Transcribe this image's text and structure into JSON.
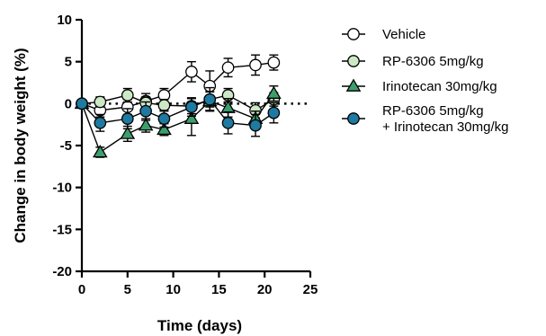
{
  "chart_data": {
    "type": "line",
    "title": "",
    "xlabel": "Time (days)",
    "ylabel": "Change in body weight (%)",
    "xlim": [
      0,
      25
    ],
    "ylim": [
      -20,
      10
    ],
    "xticks": [
      0,
      5,
      10,
      15,
      20,
      25
    ],
    "yticks": [
      10,
      5,
      0,
      -5,
      -10,
      -15,
      -20
    ],
    "reference_line_y": 0,
    "grid": false,
    "legend_position": "right",
    "series": [
      {
        "name": "Vehicle",
        "marker": "circle",
        "color": "#ffffff",
        "x": [
          0,
          2,
          5,
          7,
          9,
          12,
          14,
          16,
          19,
          21
        ],
        "y": [
          0,
          -0.8,
          -0.4,
          0.3,
          1.0,
          3.8,
          2.1,
          4.3,
          4.6,
          4.9
        ],
        "err": [
          0,
          0.8,
          0.9,
          0.9,
          0.8,
          1.2,
          1.8,
          1.1,
          1.2,
          0.9
        ]
      },
      {
        "name": "RP-6306 5mg/kg",
        "marker": "circle",
        "color": "#cce8c6",
        "x": [
          0,
          2,
          5,
          7,
          9,
          12,
          14,
          16,
          19,
          21
        ],
        "y": [
          0,
          0.2,
          1.0,
          0.1,
          -0.2,
          -0.3,
          0.5,
          1.0,
          -0.8,
          0.5
        ],
        "err": [
          0,
          0.6,
          0.8,
          0.7,
          0.7,
          0.9,
          0.9,
          0.8,
          0.9,
          0.8
        ]
      },
      {
        "name": "Irinotecan 30mg/kg",
        "marker": "triangle",
        "color": "#3d9e6c",
        "x": [
          0,
          2,
          5,
          7,
          9,
          12,
          14,
          16,
          19,
          21
        ],
        "y": [
          0,
          -5.8,
          -3.6,
          -2.6,
          -3.1,
          -1.8,
          0.3,
          -0.5,
          -1.8,
          1.2
        ],
        "err": [
          0,
          0.6,
          0.9,
          0.8,
          0.7,
          2.0,
          1.1,
          1.1,
          0.9,
          0.9
        ]
      },
      {
        "name": "RP-6306 5mg/kg\n+ Irinotecan 30mg/kg",
        "marker": "circle",
        "color": "#1e7aa0",
        "x": [
          0,
          2,
          5,
          7,
          9,
          12,
          14,
          16,
          19,
          21
        ],
        "y": [
          0,
          -2.3,
          -1.8,
          -0.9,
          -1.8,
          -0.4,
          0.5,
          -2.3,
          -2.6,
          -1.1
        ],
        "err": [
          0,
          1.0,
          1.2,
          1.1,
          1.0,
          1.1,
          1.4,
          1.3,
          1.3,
          1.2
        ]
      }
    ]
  }
}
